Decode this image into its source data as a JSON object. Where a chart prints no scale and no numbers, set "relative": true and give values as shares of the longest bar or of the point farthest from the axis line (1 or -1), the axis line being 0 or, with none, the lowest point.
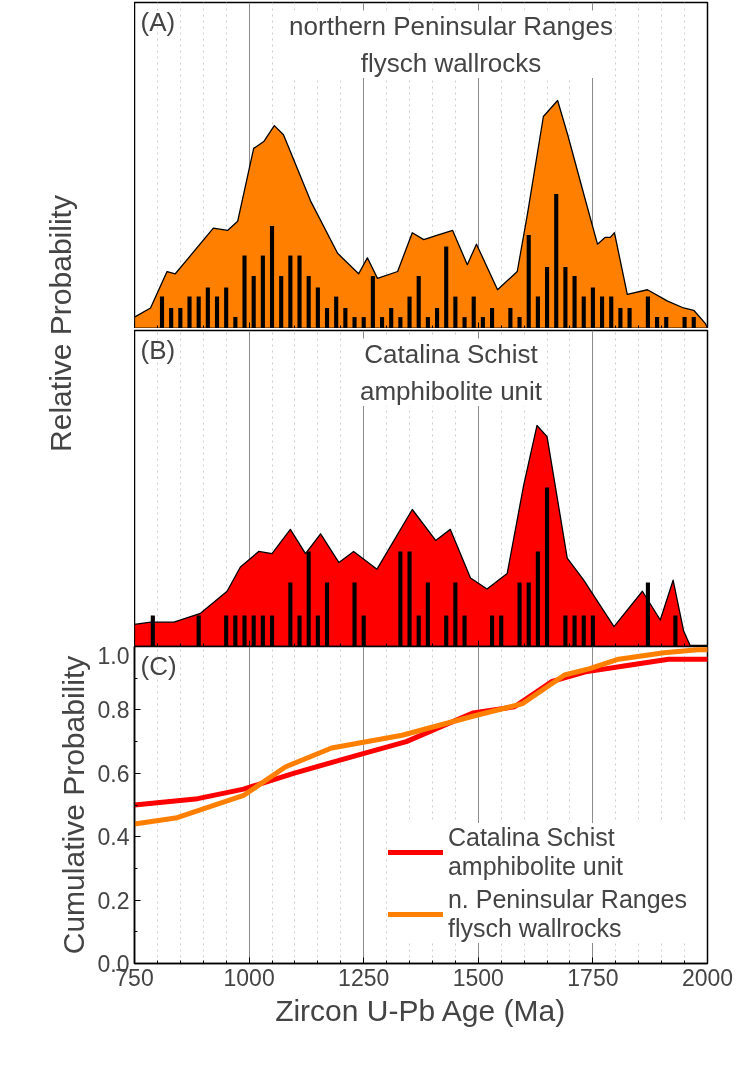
{
  "chart_data": [
    {
      "type": "area",
      "title": "northern Peninsular Ranges\nflysch wallrocks",
      "ylabel": "Relative Probability",
      "annotations": [
        "(A)"
      ],
      "relative": true,
      "xlim": [
        750,
        2000
      ],
      "xticks": [
        750,
        1000,
        1250,
        1500,
        1750,
        2000
      ],
      "tick_labels": false,
      "grid": "x",
      "series": [
        {
          "type": "area",
          "color": "#ff8000",
          "x": [
            750,
            785,
            821,
            839,
            868,
            922,
            953,
            975,
            1010,
            1032,
            1055,
            1075,
            1134,
            1193,
            1239,
            1258,
            1280,
            1324,
            1356,
            1381,
            1411,
            1444,
            1476,
            1496,
            1542,
            1585,
            1607,
            1642,
            1673,
            1695,
            1730,
            1760,
            1777,
            1788,
            1797,
            1825,
            1869,
            1913,
            1948,
            1970,
            1996,
            2000
          ],
          "values": [
            0.05,
            0.09,
            0.25,
            0.24,
            0.31,
            0.44,
            0.43,
            0.47,
            0.79,
            0.82,
            0.89,
            0.85,
            0.56,
            0.33,
            0.24,
            0.31,
            0.22,
            0.25,
            0.42,
            0.39,
            0.41,
            0.43,
            0.28,
            0.37,
            0.17,
            0.25,
            0.5,
            0.93,
            1.0,
            0.85,
            0.59,
            0.37,
            0.4,
            0.4,
            0.42,
            0.15,
            0.17,
            0.12,
            0.09,
            0.08,
            0.02,
            0
          ]
        },
        {
          "type": "bar",
          "color": "#000000",
          "x": [
            810,
            830,
            850,
            870,
            890,
            910,
            930,
            950,
            970,
            990,
            1010,
            1030,
            1050,
            1070,
            1090,
            1110,
            1130,
            1150,
            1170,
            1190,
            1210,
            1230,
            1250,
            1270,
            1290,
            1310,
            1330,
            1350,
            1370,
            1390,
            1410,
            1430,
            1450,
            1470,
            1490,
            1510,
            1530,
            1570,
            1590,
            1610,
            1630,
            1650,
            1670,
            1690,
            1710,
            1730,
            1750,
            1770,
            1790,
            1810,
            1830,
            1870,
            1890,
            1910,
            1950,
            1970
          ],
          "values": [
            0.14,
            0.09,
            0.09,
            0.14,
            0.14,
            0.18,
            0.14,
            0.18,
            0.05,
            0.32,
            0.23,
            0.32,
            0.45,
            0.23,
            0.32,
            0.32,
            0.23,
            0.18,
            0.09,
            0.14,
            0.09,
            0.05,
            0.05,
            0.23,
            0.05,
            0.09,
            0.05,
            0.14,
            0.23,
            0.05,
            0.09,
            0.36,
            0.14,
            0.05,
            0.14,
            0.05,
            0.09,
            0.09,
            0.05,
            0.41,
            0.14,
            0.27,
            0.59,
            0.27,
            0.23,
            0.14,
            0.18,
            0.14,
            0.14,
            0.09,
            0.09,
            0.14,
            0.05,
            0.05,
            0.05,
            0.05
          ]
        }
      ]
    },
    {
      "type": "area",
      "title": "Catalina Schist\namphibolite unit",
      "annotations": [
        "(B)"
      ],
      "relative": true,
      "xlim": [
        750,
        2000
      ],
      "xticks": [
        750,
        1000,
        1250,
        1500,
        1750,
        2000
      ],
      "tick_labels": false,
      "grid": "x",
      "series": [
        {
          "type": "area",
          "color": "#ff0000",
          "x": [
            750,
            785,
            836,
            894,
            952,
            981,
            1021,
            1050,
            1090,
            1123,
            1156,
            1196,
            1228,
            1279,
            1356,
            1407,
            1439,
            1483,
            1519,
            1563,
            1599,
            1628,
            1650,
            1694,
            1730,
            1796,
            1858,
            1897,
            1925,
            1948,
            1963,
            2000
          ],
          "values": [
            0.1,
            0.11,
            0.11,
            0.15,
            0.25,
            0.36,
            0.43,
            0.42,
            0.53,
            0.42,
            0.51,
            0.38,
            0.43,
            0.35,
            0.62,
            0.48,
            0.53,
            0.31,
            0.26,
            0.33,
            0.73,
            1.0,
            0.95,
            0.4,
            0.3,
            0.09,
            0.25,
            0.12,
            0.3,
            0.07,
            0,
            0
          ]
        },
        {
          "type": "bar",
          "color": "#000000",
          "x": [
            790,
            890,
            950,
            970,
            990,
            1010,
            1030,
            1050,
            1090,
            1110,
            1130,
            1150,
            1170,
            1230,
            1250,
            1330,
            1350,
            1370,
            1390,
            1430,
            1450,
            1470,
            1530,
            1550,
            1590,
            1610,
            1630,
            1650,
            1690,
            1710,
            1730,
            1750,
            1870,
            1930
          ],
          "values": [
            0.14,
            0.14,
            0.14,
            0.14,
            0.14,
            0.14,
            0.14,
            0.14,
            0.29,
            0.14,
            0.43,
            0.14,
            0.29,
            0.29,
            0.14,
            0.43,
            0.43,
            0.14,
            0.29,
            0.14,
            0.29,
            0.14,
            0.14,
            0.14,
            0.29,
            0.29,
            0.43,
            0.72,
            0.14,
            0.14,
            0.14,
            0.14,
            0.29,
            0.14
          ]
        }
      ]
    },
    {
      "type": "line",
      "xlabel": "Zircon U-Pb Age (Ma)",
      "ylabel": "Cumulative Probability",
      "annotations": [
        "(C)"
      ],
      "xlim": [
        750,
        2000
      ],
      "xticks": [
        750,
        1000,
        1250,
        1500,
        1750,
        2000
      ],
      "ylim": [
        0,
        1
      ],
      "yticks": [
        {
          "value": 0,
          "label": "0.0"
        },
        {
          "value": 0.2,
          "label": "0.2"
        },
        {
          "value": 0.4,
          "label": "0.4"
        },
        {
          "value": 0.6,
          "label": "0.6"
        },
        {
          "value": 0.8,
          "label": "0.8"
        },
        {
          "value": 1,
          "label": "1.0"
        }
      ],
      "grid": "x",
      "legend": "bottom right",
      "series": [
        {
          "name": "Catalina Schist\namphibolite unit",
          "color": "#ff0000",
          "x": [
            750,
            888,
            988,
            1097,
            1243,
            1343,
            1488,
            1579,
            1661,
            1734,
            1825,
            1915,
            1979,
            2000
          ],
          "values": [
            0.5,
            0.52,
            0.55,
            0.6,
            0.66,
            0.7,
            0.79,
            0.81,
            0.89,
            0.92,
            0.94,
            0.96,
            0.96,
            0.96
          ]
        },
        {
          "name": "n. Peninsular Ranges\nflysch wallrocks",
          "color": "#ff8000",
          "x": [
            750,
            843,
            988,
            1079,
            1180,
            1334,
            1488,
            1597,
            1688,
            1743,
            1806,
            1905,
            1979,
            2000
          ],
          "values": [
            0.44,
            0.46,
            0.53,
            0.62,
            0.68,
            0.72,
            0.78,
            0.82,
            0.91,
            0.93,
            0.96,
            0.98,
            0.99,
            0.99
          ]
        }
      ]
    }
  ]
}
